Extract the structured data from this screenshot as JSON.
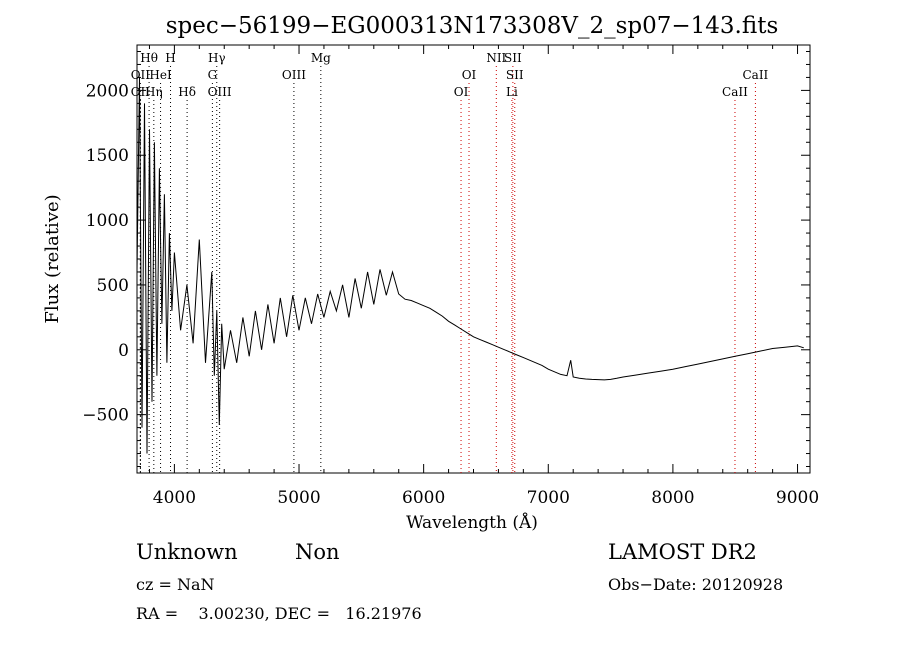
{
  "chart_data": {
    "type": "line",
    "title": "spec−56199−EG000313N173308V_2_sp07−143.fits",
    "xlabel": "Wavelength (Å)",
    "ylabel": "Flux (relative)",
    "xlim": [
      3700,
      9100
    ],
    "ylim": [
      -950,
      2350
    ],
    "xticks": [
      4000,
      5000,
      6000,
      7000,
      8000,
      9000
    ],
    "xtick_labels": [
      "4000",
      "5000",
      "6000",
      "7000",
      "8000",
      "9000"
    ],
    "yticks": [
      -500,
      0,
      500,
      1000,
      1500,
      2000
    ],
    "ytick_labels": [
      "−500",
      "0",
      "500",
      "1000",
      "1500",
      "2000"
    ],
    "grid": false,
    "legend": "none",
    "series": [
      {
        "x": [
          3700,
          3720,
          3740,
          3760,
          3780,
          3800,
          3820,
          3840,
          3860,
          3880,
          3900,
          3920,
          3940,
          3960,
          3980,
          4000,
          4050,
          4100,
          4150,
          4200,
          4250,
          4300,
          4320,
          4340,
          4360,
          4380,
          4400,
          4450,
          4500,
          4550,
          4600,
          4650,
          4700,
          4750,
          4800,
          4850,
          4900,
          4950,
          5000,
          5050,
          5100,
          5150,
          5200,
          5250,
          5300,
          5350,
          5400,
          5450,
          5500,
          5550,
          5600,
          5650,
          5700,
          5750,
          5800,
          5850,
          5900,
          5950,
          6000,
          6050,
          6100,
          6150,
          6200,
          6250,
          6300,
          6350,
          6400,
          6450,
          6500,
          6550,
          6600,
          6650,
          6700,
          6750,
          6800,
          6850,
          6900,
          6950,
          7000,
          7050,
          7100,
          7150,
          7180,
          7200,
          7250,
          7300,
          7350,
          7400,
          7450,
          7500,
          7550,
          7600,
          7700,
          7800,
          7900,
          8000,
          8100,
          8200,
          8300,
          8400,
          8500,
          8600,
          8700,
          8800,
          8900,
          9000,
          9050
        ],
        "y": [
          600,
          2100,
          -600,
          1900,
          -800,
          1700,
          -400,
          1600,
          -200,
          1400,
          200,
          1200,
          -100,
          900,
          300,
          750,
          150,
          500,
          50,
          850,
          -100,
          600,
          -200,
          300,
          -580,
          200,
          -150,
          150,
          -100,
          250,
          -50,
          300,
          0,
          350,
          50,
          400,
          100,
          420,
          150,
          400,
          200,
          430,
          250,
          450,
          300,
          500,
          250,
          550,
          320,
          600,
          350,
          620,
          420,
          600,
          430,
          390,
          380,
          360,
          340,
          320,
          290,
          260,
          220,
          190,
          160,
          130,
          100,
          80,
          60,
          40,
          20,
          0,
          -20,
          -40,
          -60,
          -80,
          -100,
          -120,
          -150,
          -170,
          -190,
          -200,
          -80,
          -210,
          -220,
          -225,
          -228,
          -230,
          -232,
          -228,
          -220,
          -210,
          -195,
          -180,
          -165,
          -150,
          -130,
          -110,
          -90,
          -70,
          -50,
          -30,
          -10,
          10,
          20,
          30,
          15
        ]
      }
    ],
    "lines": [
      {
        "label": "Hθ",
        "wavelength": 3797,
        "color": "#000000",
        "row": 1
      },
      {
        "label": "H",
        "wavelength": 3969,
        "color": "#000000",
        "row": 1
      },
      {
        "label": "Hγ",
        "wavelength": 4340,
        "color": "#000000",
        "row": 1
      },
      {
        "label": "Mg",
        "wavelength": 5175,
        "color": "#000000",
        "row": 1
      },
      {
        "label": "NII",
        "wavelength": 6583,
        "color": "#cc0000",
        "row": 1
      },
      {
        "label": "SII",
        "wavelength": 6716,
        "color": "#cc0000",
        "row": 1
      },
      {
        "label": "OII",
        "wavelength": 3727,
        "color": "#000000",
        "row": 2
      },
      {
        "label": "HeI",
        "wavelength": 3889,
        "color": "#000000",
        "row": 2
      },
      {
        "label": "G",
        "wavelength": 4305,
        "color": "#000000",
        "row": 2
      },
      {
        "label": "OIII",
        "wavelength": 4959,
        "color": "#000000",
        "row": 2
      },
      {
        "label": "OI",
        "wavelength": 6364,
        "color": "#cc0000",
        "row": 2
      },
      {
        "label": "SII",
        "wavelength": 6731,
        "color": "#cc0000",
        "row": 2
      },
      {
        "label": "CaII",
        "wavelength": 8662,
        "color": "#cc0000",
        "row": 2
      },
      {
        "label": "OII",
        "wavelength": 3727,
        "color": "#000000",
        "row": 3
      },
      {
        "label": "Hη",
        "wavelength": 3835,
        "color": "#000000",
        "row": 3
      },
      {
        "label": "Hδ",
        "wavelength": 4102,
        "color": "#000000",
        "row": 3
      },
      {
        "label": "OIII",
        "wavelength": 4363,
        "color": "#000000",
        "row": 3
      },
      {
        "label": "OI",
        "wavelength": 6300,
        "color": "#cc0000",
        "row": 3
      },
      {
        "label": "Li",
        "wavelength": 6708,
        "color": "#cc0000",
        "row": 3
      },
      {
        "label": "CaII",
        "wavelength": 8498,
        "color": "#cc0000",
        "row": 3
      }
    ]
  },
  "info": {
    "class": "Unknown",
    "subclass": "Non",
    "survey": "LAMOST DR2",
    "cz": "cz = NaN",
    "obs_date": "Obs−Date: 20120928",
    "radec": "RA =    3.00230, DEC =   16.21976"
  }
}
